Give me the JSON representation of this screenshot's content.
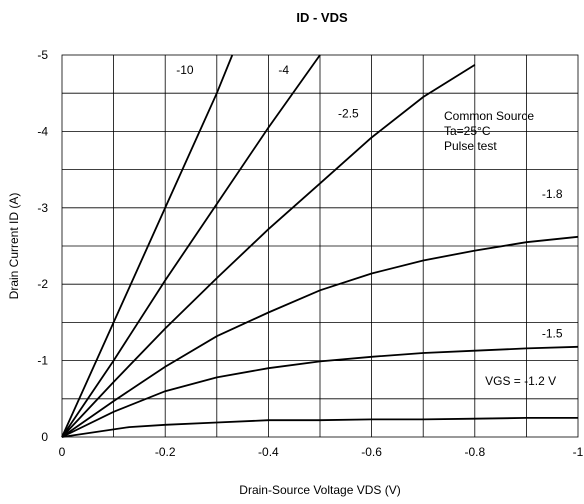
{
  "chart_data": {
    "type": "line",
    "title": "ID - VDS",
    "xlabel": "Drain-Source Voltage VDS (V)",
    "ylabel": "Drain Current  ID (A)",
    "xlim": [
      0,
      -1
    ],
    "ylim": [
      0,
      -5
    ],
    "x_ticks": [
      "0",
      "-0.2",
      "-0.4",
      "-0.6",
      "-0.8",
      "-1"
    ],
    "y_ticks": [
      "0",
      "-1",
      "-2",
      "-3",
      "-4",
      "-5"
    ],
    "grid": true,
    "annotation": [
      "Common Source",
      "Ta=25°C",
      "Pulse test"
    ],
    "series": [
      {
        "name": "-10",
        "points": [
          [
            0,
            0
          ],
          [
            -0.1,
            -1.5
          ],
          [
            -0.2,
            -3.0
          ],
          [
            -0.3,
            -4.5
          ],
          [
            -0.33,
            -5.0
          ]
        ]
      },
      {
        "name": "-4",
        "points": [
          [
            0,
            0
          ],
          [
            -0.1,
            -1.0
          ],
          [
            -0.2,
            -2.05
          ],
          [
            -0.3,
            -3.05
          ],
          [
            -0.4,
            -4.05
          ],
          [
            -0.5,
            -5.0
          ]
        ]
      },
      {
        "name": "-2.5",
        "points": [
          [
            0,
            0
          ],
          [
            -0.1,
            -0.72
          ],
          [
            -0.2,
            -1.42
          ],
          [
            -0.3,
            -2.08
          ],
          [
            -0.4,
            -2.72
          ],
          [
            -0.5,
            -3.32
          ],
          [
            -0.6,
            -3.92
          ],
          [
            -0.7,
            -4.45
          ],
          [
            -0.8,
            -4.87
          ]
        ]
      },
      {
        "name": "-1.8",
        "points": [
          [
            0,
            0
          ],
          [
            -0.1,
            -0.47
          ],
          [
            -0.2,
            -0.92
          ],
          [
            -0.3,
            -1.32
          ],
          [
            -0.4,
            -1.63
          ],
          [
            -0.5,
            -1.92
          ],
          [
            -0.6,
            -2.14
          ],
          [
            -0.7,
            -2.31
          ],
          [
            -0.8,
            -2.44
          ],
          [
            -0.9,
            -2.55
          ],
          [
            -1.0,
            -2.62
          ]
        ]
      },
      {
        "name": "-1.5",
        "points": [
          [
            0,
            0
          ],
          [
            -0.1,
            -0.33
          ],
          [
            -0.2,
            -0.6
          ],
          [
            -0.3,
            -0.78
          ],
          [
            -0.4,
            -0.9
          ],
          [
            -0.5,
            -0.99
          ],
          [
            -0.6,
            -1.05
          ],
          [
            -0.7,
            -1.1
          ],
          [
            -0.8,
            -1.13
          ],
          [
            -0.9,
            -1.16
          ],
          [
            -1.0,
            -1.18
          ]
        ]
      },
      {
        "name": "VGS = -1.2 V",
        "points": [
          [
            0,
            0
          ],
          [
            -0.13,
            -0.13
          ],
          [
            -0.2,
            -0.16
          ],
          [
            -0.3,
            -0.19
          ],
          [
            -0.4,
            -0.22
          ],
          [
            -0.5,
            -0.22
          ],
          [
            -0.6,
            -0.23
          ],
          [
            -0.7,
            -0.23
          ],
          [
            -0.8,
            -0.24
          ],
          [
            -0.9,
            -0.25
          ],
          [
            -1.0,
            -0.25
          ]
        ]
      }
    ]
  }
}
